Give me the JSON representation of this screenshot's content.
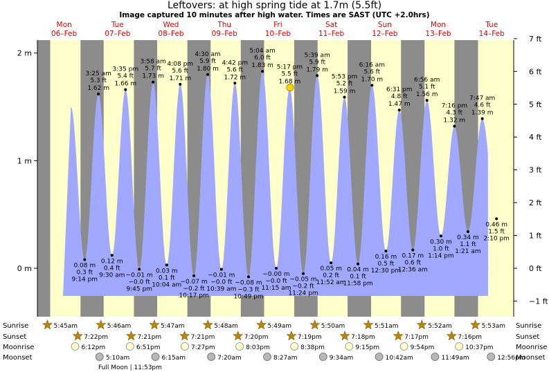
{
  "header": {
    "title": "Leftovers: at high  spring tide at 1.7m (5.5ft)",
    "subtitle": "Image captured 10 minutes after high water. Times are SAST (UTC +2.0hrs)"
  },
  "chart_data": {
    "type": "area",
    "days": [
      {
        "dow": "Mon",
        "date": "06–Feb"
      },
      {
        "dow": "Tue",
        "date": "07–Feb"
      },
      {
        "dow": "Wed",
        "date": "08–Feb"
      },
      {
        "dow": "Thu",
        "date": "09–Feb"
      },
      {
        "dow": "Fri",
        "date": "10–Feb"
      },
      {
        "dow": "Sat",
        "date": "11–Feb"
      },
      {
        "dow": "Sun",
        "date": "12–Feb"
      },
      {
        "dow": "Mon",
        "date": "13–Feb"
      },
      {
        "dow": "Tue",
        "date": "14–Feb"
      }
    ],
    "y_left_ticks": [
      "2 m",
      "1 m",
      "0 m"
    ],
    "y_right_ticks": [
      "7 ft",
      "6 ft",
      "5 ft",
      "4 ft",
      "3 ft",
      "2 ft",
      "1 ft",
      "0 ft",
      "−1 ft"
    ],
    "ylim_m": [
      -0.45,
      2.12
    ],
    "tides": [
      {
        "day": 0,
        "time": "9:14 pm",
        "m": 0.08,
        "ft": "0.3 ft",
        "m_label": "0.08 m",
        "type": "low"
      },
      {
        "day": 1,
        "time": "3:25 am",
        "m": 1.62,
        "ft": "5.3 ft",
        "m_label": "1.62 m",
        "type": "high"
      },
      {
        "day": 1,
        "time": "9:30 am",
        "m": 0.12,
        "ft": "0.4 ft",
        "m_label": "0.12 m",
        "type": "low"
      },
      {
        "day": 1,
        "time": "3:35 pm",
        "m": 1.66,
        "ft": "5.4 ft",
        "m_label": "1.66 m",
        "type": "high"
      },
      {
        "day": 1,
        "time": "9:45 pm",
        "m": -0.01,
        "ft": "−0.0 ft",
        "m_label": "−0.01 m",
        "type": "low"
      },
      {
        "day": 2,
        "time": "3:58 am",
        "m": 1.73,
        "ft": "5.7 ft",
        "m_label": "1.73 m",
        "type": "high"
      },
      {
        "day": 2,
        "time": "10:04 am",
        "m": 0.03,
        "ft": "0.1 ft",
        "m_label": "0.03 m",
        "type": "low"
      },
      {
        "day": 2,
        "time": "4:08 pm",
        "m": 1.71,
        "ft": "5.6 ft",
        "m_label": "1.71 m",
        "type": "high"
      },
      {
        "day": 2,
        "time": "10:17 pm",
        "m": -0.07,
        "ft": "−0.2 ft",
        "m_label": "−0.07 m",
        "type": "low"
      },
      {
        "day": 3,
        "time": "4:30 am",
        "m": 1.8,
        "ft": "5.9 ft",
        "m_label": "1.80 m",
        "type": "high"
      },
      {
        "day": 3,
        "time": "10:39 am",
        "m": -0.01,
        "ft": "−0.0 ft",
        "m_label": "−0.01 m",
        "type": "low"
      },
      {
        "day": 3,
        "time": "4:42 pm",
        "m": 1.72,
        "ft": "5.6 ft",
        "m_label": "1.72 m",
        "type": "high"
      },
      {
        "day": 3,
        "time": "10:49 pm",
        "m": -0.08,
        "ft": "−0.3 ft",
        "m_label": "−0.08 m",
        "type": "low"
      },
      {
        "day": 4,
        "time": "5:04 am",
        "m": 1.83,
        "ft": "6.0 ft",
        "m_label": "1.83 m",
        "type": "high"
      },
      {
        "day": 4,
        "time": "11:15 am",
        "m": -0.0,
        "ft": "−0.0 ft",
        "m_label": "−0.00 m",
        "type": "low"
      },
      {
        "day": 4,
        "time": "5:17 pm",
        "m": 1.68,
        "ft": "5.5 ft",
        "m_label": "1.68 m",
        "type": "high"
      },
      {
        "day": 4,
        "time": "11:24 pm",
        "m": -0.05,
        "ft": "−0.2 ft",
        "m_label": "−0.05 m",
        "type": "low"
      },
      {
        "day": 5,
        "time": "5:39 am",
        "m": 1.79,
        "ft": "5.9 ft",
        "m_label": "1.79 m",
        "type": "high"
      },
      {
        "day": 5,
        "time": "11:52 am",
        "m": 0.05,
        "ft": "0.2 ft",
        "m_label": "0.05 m",
        "type": "low"
      },
      {
        "day": 5,
        "time": "5:53 pm",
        "m": 1.59,
        "ft": "5.2 ft",
        "m_label": "1.59 m",
        "type": "high"
      },
      {
        "day": 5,
        "time": "11:58 pm",
        "m": 0.04,
        "ft": "0.1 ft",
        "m_label": "0.04 m",
        "type": "low"
      },
      {
        "day": 6,
        "time": "6:16 am",
        "m": 1.7,
        "ft": "5.6 ft",
        "m_label": "1.70 m",
        "type": "high"
      },
      {
        "day": 6,
        "time": "12:30 pm",
        "m": 0.16,
        "ft": "0.5 ft",
        "m_label": "0.16 m",
        "type": "low"
      },
      {
        "day": 6,
        "time": "6:31 pm",
        "m": 1.47,
        "ft": "4.8 ft",
        "m_label": "1.47 m",
        "type": "high"
      },
      {
        "day": 7,
        "time": "12:36 am",
        "m": 0.17,
        "ft": "0.6 ft",
        "m_label": "0.17 m",
        "type": "low"
      },
      {
        "day": 7,
        "time": "6:56 am",
        "m": 1.56,
        "ft": "5.1 ft",
        "m_label": "1.56 m",
        "type": "high"
      },
      {
        "day": 7,
        "time": "1:14 pm",
        "m": 0.3,
        "ft": "1.0 ft",
        "m_label": "0.30 m",
        "type": "low"
      },
      {
        "day": 7,
        "time": "7:16 pm",
        "m": 1.32,
        "ft": "4.3 ft",
        "m_label": "1.32 m",
        "type": "high"
      },
      {
        "day": 8,
        "time": "1:21 am",
        "m": 0.34,
        "ft": "1.1 ft",
        "m_label": "0.34 m",
        "type": "low"
      },
      {
        "day": 8,
        "time": "7:47 am",
        "m": 1.39,
        "ft": "4.6 ft",
        "m_label": "1.39 m",
        "type": "high"
      },
      {
        "day": 8,
        "time": "2:10 pm",
        "m": 0.46,
        "ft": "1.5 ft",
        "m_label": "0.46 m",
        "type": "low"
      }
    ],
    "capture_time": "5:27 pm",
    "capture_day": 4
  },
  "astro": {
    "labels": {
      "sunrise": "Sunrise",
      "sunset": "Sunset",
      "moonrise": "Moonrise",
      "moonset": "Moonset"
    },
    "sunrise": [
      "5:45am",
      "5:46am",
      "5:47am",
      "5:48am",
      "5:49am",
      "5:50am",
      "5:51am",
      "5:52am",
      "5:53am"
    ],
    "sunset": [
      "7:22pm",
      "7:21pm",
      "7:21pm",
      "7:20pm",
      "7:19pm",
      "7:18pm",
      "7:17pm",
      "7:16pm"
    ],
    "moonrise": [
      "6:12pm",
      "6:51pm",
      "7:27pm",
      "8:03pm",
      "8:38pm",
      "9:15pm",
      "9:54pm",
      "10:37pm"
    ],
    "moonset": [
      "5:10am",
      "6:15am",
      "7:20am",
      "8:27am",
      "9:34am",
      "10:42am",
      "11:49am",
      "12:56pm"
    ],
    "full_moon_note": "Full Moon | 11:53pm"
  },
  "colors": {
    "water": "#a0a8ff",
    "day": "#ffffcc",
    "night": "#8c8c8c",
    "day_label": "#e00000",
    "sun_star": "#b8860b",
    "moonrise": "#ffffcc",
    "moonset": "#b8b8b8"
  }
}
